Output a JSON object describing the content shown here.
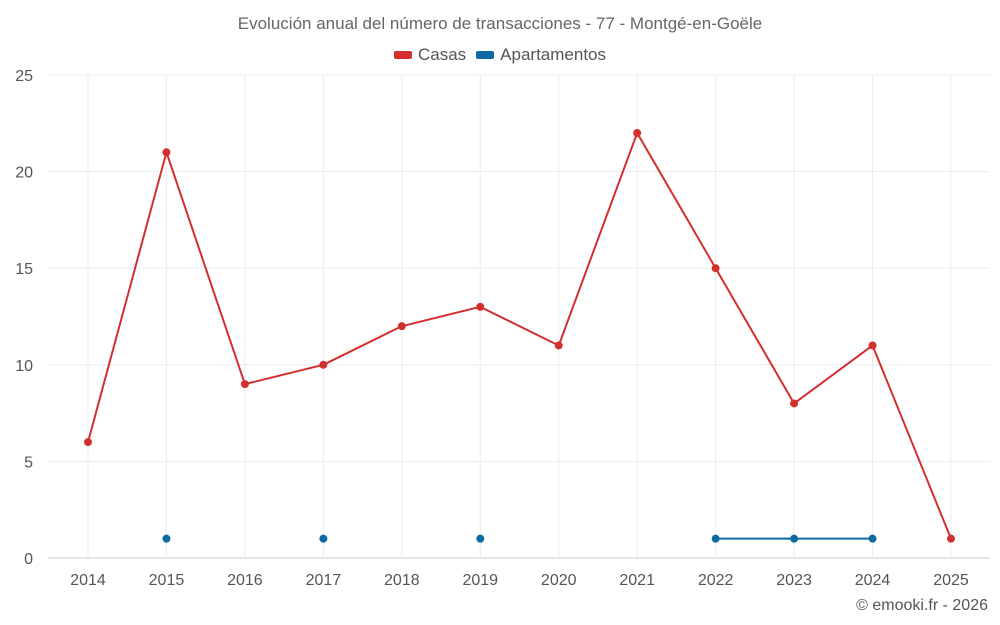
{
  "chart_data": {
    "type": "line",
    "title": "Evolución anual del número de transacciones - 77 - Montgé-en-Goële",
    "xlabel": "",
    "ylabel": "",
    "ylim": [
      0,
      25
    ],
    "y_ticks": [
      0,
      5,
      10,
      15,
      20,
      25
    ],
    "categories": [
      "2014",
      "2015",
      "2016",
      "2017",
      "2018",
      "2019",
      "2020",
      "2021",
      "2022",
      "2023",
      "2024",
      "2025"
    ],
    "series": [
      {
        "name": "Casas",
        "color": "#d32f2f",
        "values": [
          6,
          21,
          9,
          10,
          12,
          13,
          11,
          22,
          15,
          8,
          11,
          1
        ]
      },
      {
        "name": "Apartamentos",
        "color": "#0d6aa3",
        "values": [
          null,
          1,
          null,
          1,
          null,
          1,
          null,
          null,
          1,
          1,
          1,
          null
        ]
      }
    ],
    "legend_position": "top-center",
    "grid": true
  },
  "footer": {
    "copyright": "© emooki.fr - 2026"
  }
}
